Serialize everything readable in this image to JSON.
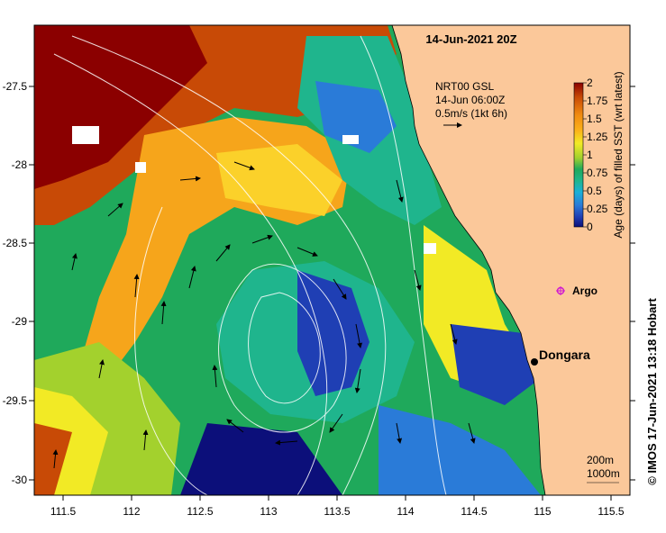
{
  "title": "14-Jun-2021 20Z",
  "product": {
    "line1": "NRT00 GSL",
    "line2": "14-Jun 06:00Z",
    "line3": "0.5m/s (1kt 6h)"
  },
  "colorbar": {
    "label": "Age (days) of filled SST (wrt latest)",
    "ticks": [
      "2",
      "1.75",
      "1.5",
      "1.25",
      "1",
      "0.75",
      "0.5",
      "0.25",
      "0"
    ],
    "colors": [
      "#8b0000",
      "#c84a06",
      "#f08a10",
      "#fbb21a",
      "#f2ea25",
      "#a3d12d",
      "#1fa95b",
      "#1fb58d",
      "#1ab0d8",
      "#2a7bd8",
      "#1f3fb4",
      "#0c0f7a"
    ]
  },
  "axes": {
    "x_ticks": [
      "111.5",
      "112",
      "112.5",
      "113",
      "113.5",
      "114",
      "114.5",
      "115",
      "115.5"
    ],
    "y_ticks": [
      "-27.5",
      "-28",
      "-28.5",
      "-29",
      "-29.5",
      "-30"
    ]
  },
  "places": {
    "dongara": "Dongara",
    "argo": "Argo"
  },
  "scale": {
    "isobath1": "200m",
    "isobath2": "1000m"
  },
  "credit": "© IMOS 17-Jun-2021 13:18 Hobart",
  "colors": {
    "land": "#fbc89a",
    "frame": "#000000"
  }
}
